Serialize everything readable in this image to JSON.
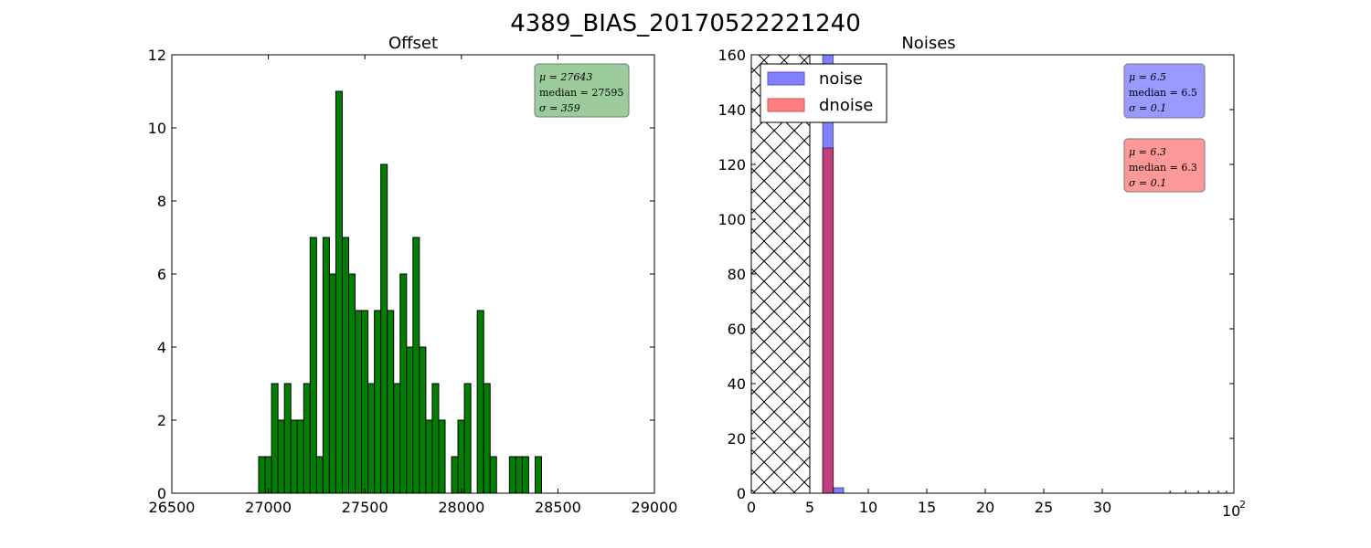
{
  "figure": {
    "suptitle": "4389_BIAS_20170522221240"
  },
  "chart_data": [
    {
      "type": "bar",
      "title": "Offset",
      "xlabel": "",
      "ylabel": "",
      "xlim": [
        26500,
        29000
      ],
      "ylim": [
        0,
        12
      ],
      "xticks": [
        "26500",
        "27000",
        "27500",
        "28000",
        "28500",
        "29000"
      ],
      "yticks": [
        "0",
        "2",
        "4",
        "6",
        "8",
        "10",
        "12"
      ],
      "bin_width": 33.3,
      "bin_start": 26950,
      "values": [
        1,
        1,
        3,
        2,
        3,
        2,
        2,
        3,
        7,
        1,
        7,
        6,
        11,
        7,
        6,
        5,
        5,
        3,
        5,
        9,
        5,
        3,
        6,
        4,
        7,
        4,
        2,
        3,
        2,
        0,
        1,
        2,
        3,
        0,
        5,
        3,
        1,
        0,
        0,
        1,
        1,
        1,
        0,
        1
      ],
      "color": "#008000",
      "stats_box": {
        "mu": "μ = 27643",
        "median": "median = 27595",
        "sigma": "σ = 359",
        "color": "#9ccc9c"
      }
    },
    {
      "type": "bar",
      "title": "Noises",
      "xlabel": "",
      "ylabel": "",
      "xlim": [
        0,
        100
      ],
      "ylim": [
        0,
        160
      ],
      "x_scale": "linear up to 35, log-style extension to 10^2",
      "xticks": [
        "0",
        "5",
        "10",
        "15",
        "20",
        "25",
        "30"
      ],
      "xtick_last": {
        "base": "10",
        "exp": "2"
      },
      "yticks": [
        "0",
        "20",
        "40",
        "60",
        "80",
        "100",
        "120",
        "140",
        "160"
      ],
      "hatched_region": [
        0,
        5
      ],
      "legend": {
        "position": "top-left",
        "entries": [
          "noise",
          "dnoise"
        ]
      },
      "series": [
        {
          "name": "noise",
          "color": "#0000ff",
          "bars": [
            {
              "x0": 6.1,
              "x1": 7.0,
              "value": 160
            },
            {
              "x0": 7.0,
              "x1": 7.9,
              "value": 2
            }
          ]
        },
        {
          "name": "dnoise",
          "color": "#ff0000",
          "bars": [
            {
              "x0": 6.1,
              "x1": 7.0,
              "value": 126
            }
          ]
        }
      ],
      "stats_boxes": [
        {
          "mu": "μ = 6.5",
          "median": "median = 6.5",
          "sigma": "σ = 0.1",
          "color": "#9999ff"
        },
        {
          "mu": "μ = 6.3",
          "median": "median = 6.3",
          "sigma": "σ = 0.1",
          "color": "#ff9999"
        }
      ]
    }
  ]
}
